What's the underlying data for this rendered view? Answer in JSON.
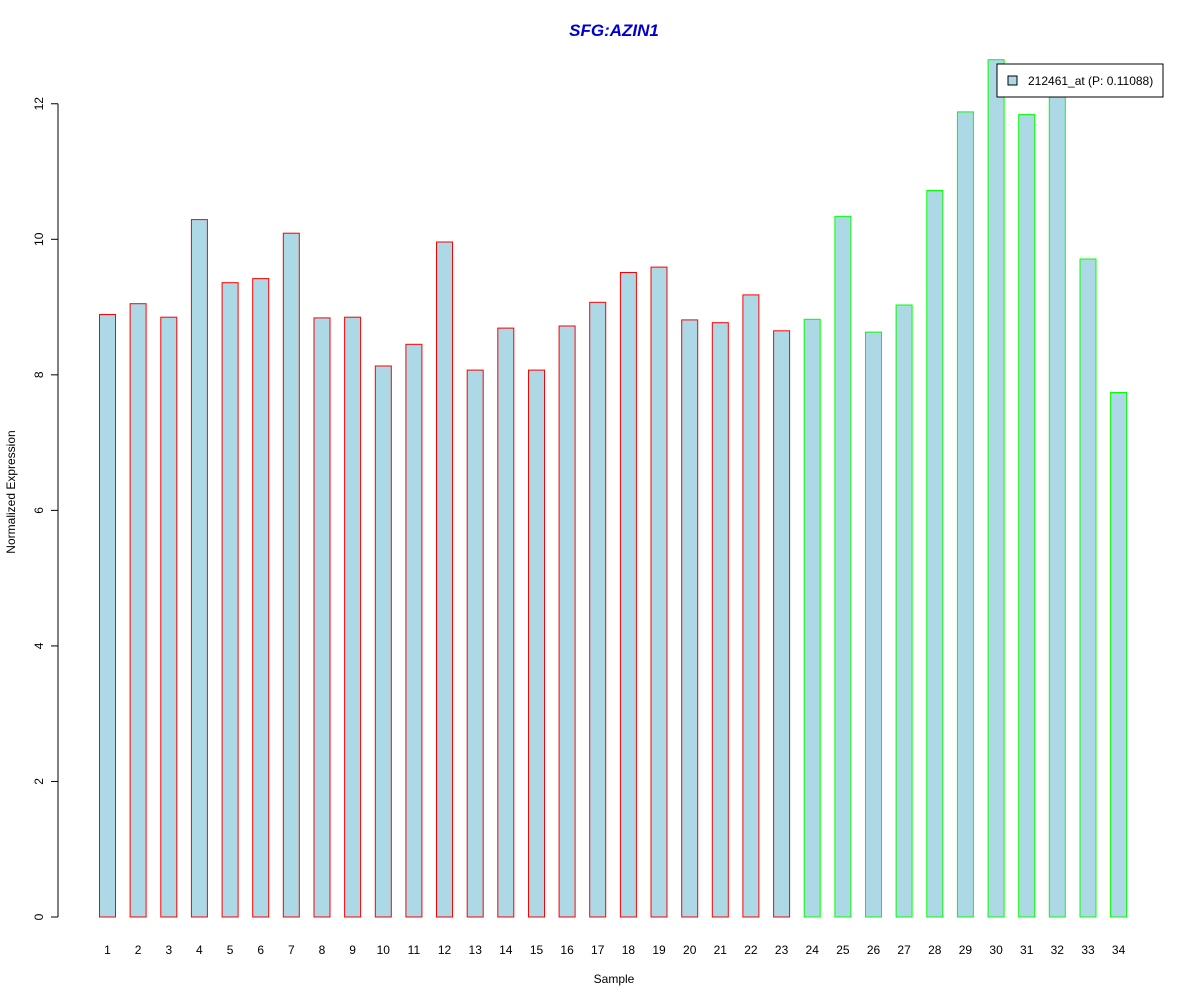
{
  "chart_data": {
    "type": "bar",
    "title": "SFG:AZIN1",
    "xlabel": "Sample",
    "ylabel": "Normalized Expression",
    "ylim": [
      0,
      12.6
    ],
    "yticks": [
      0,
      2,
      4,
      6,
      8,
      10,
      12
    ],
    "categories": [
      "1",
      "2",
      "3",
      "4",
      "5",
      "6",
      "7",
      "8",
      "9",
      "10",
      "11",
      "12",
      "13",
      "14",
      "15",
      "16",
      "17",
      "18",
      "19",
      "20",
      "21",
      "22",
      "23",
      "24",
      "25",
      "26",
      "27",
      "28",
      "29",
      "30",
      "31",
      "32",
      "33",
      "34"
    ],
    "series": [
      {
        "name": "212461_at (P: 0.11088)",
        "values": [
          8.89,
          9.05,
          8.85,
          10.29,
          9.36,
          9.42,
          10.09,
          8.84,
          8.85,
          8.13,
          8.45,
          9.96,
          8.07,
          8.69,
          8.07,
          8.72,
          9.07,
          9.51,
          9.59,
          8.81,
          8.77,
          9.18,
          8.65,
          8.82,
          10.34,
          8.63,
          9.03,
          10.72,
          11.88,
          12.65,
          11.84,
          12.12,
          9.71,
          7.74
        ],
        "fill": "#add8e6",
        "borders": [
          "#ff0000",
          "#ff0000",
          "#ff0000",
          "#ff0000",
          "#ff0000",
          "#ff0000",
          "#ff0000",
          "#ff0000",
          "#ff0000",
          "#ff0000",
          "#ff0000",
          "#ff0000",
          "#ff0000",
          "#ff0000",
          "#ff0000",
          "#ff0000",
          "#ff0000",
          "#ff0000",
          "#ff0000",
          "#ff0000",
          "#ff0000",
          "#ff0000",
          "#ff0000",
          "#00ff00",
          "#00ff00",
          "#00ff00",
          "#00ff00",
          "#00ff00",
          "#00ff00",
          "#00ff00",
          "#00ff00",
          "#00ff00",
          "#00ff00",
          "#00ff00"
        ]
      }
    ],
    "legend": {
      "label": "212461_at (P: 0.11088)",
      "placement": "top-right",
      "swatch_fill": "#add8e6"
    },
    "colors": {
      "title": "#0000cd",
      "group1_border": "#ff0000",
      "group2_border": "#00ff00",
      "bar_fill": "#add8e6"
    }
  }
}
